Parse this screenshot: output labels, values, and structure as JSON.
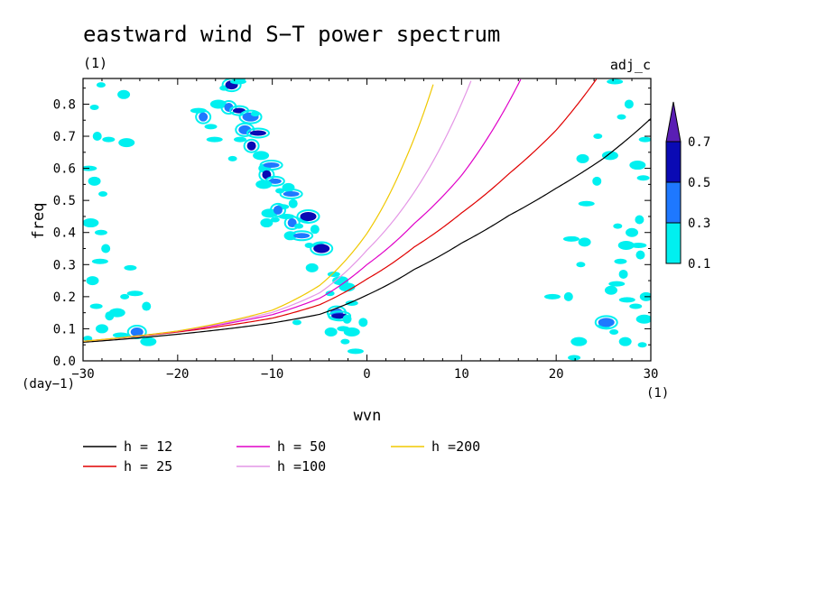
{
  "chart_data": {
    "type": "heatmap",
    "title": "eastward wind S−T power spectrum",
    "subtitle": "(1)",
    "annotation_right": "adj_c",
    "xlabel": "wvn",
    "ylabel": "freq",
    "x_unit": "(1)",
    "y_unit": "(day−1)",
    "xlim": [
      -30,
      30
    ],
    "ylim": [
      0,
      0.88
    ],
    "x_ticks": [
      -30,
      -20,
      -10,
      0,
      10,
      20,
      30
    ],
    "x_tick_labels": [
      "−30",
      "−20",
      "−10",
      "0",
      "10",
      "20",
      "30"
    ],
    "y_ticks": [
      0,
      0.1,
      0.2,
      0.3,
      0.4,
      0.5,
      0.6,
      0.7,
      0.8
    ],
    "y_tick_labels": [
      "0.0",
      "0.1",
      "0.2",
      "0.3",
      "0.4",
      "0.5",
      "0.6",
      "0.7",
      "0.8"
    ],
    "colorbar": {
      "levels": [
        0.1,
        0.3,
        0.5,
        0.7
      ],
      "labels": [
        "0.1",
        "0.3",
        "0.5",
        "0.7"
      ],
      "colors": [
        "#00f0f0",
        "#1e78ff",
        "#0a0ab4",
        "#5a1eb4"
      ]
    },
    "contour_patches": [
      {
        "x": -29.5,
        "y": 0.07,
        "c": 0
      },
      {
        "x": -28,
        "y": 0.1,
        "c": 0
      },
      {
        "x": -26,
        "y": 0.08,
        "c": 0
      },
      {
        "x": -27.2,
        "y": 0.14,
        "c": 0
      },
      {
        "x": -28.6,
        "y": 0.17,
        "c": 0
      },
      {
        "x": -26.4,
        "y": 0.15,
        "c": 0
      },
      {
        "x": -25.6,
        "y": 0.2,
        "c": 0
      },
      {
        "x": -29,
        "y": 0.25,
        "c": 0
      },
      {
        "x": -28.2,
        "y": 0.31,
        "c": 0
      },
      {
        "x": -27.6,
        "y": 0.35,
        "c": 0
      },
      {
        "x": -28.1,
        "y": 0.4,
        "c": 0
      },
      {
        "x": -29.2,
        "y": 0.43,
        "c": 0
      },
      {
        "x": -27.9,
        "y": 0.52,
        "c": 0
      },
      {
        "x": -28.8,
        "y": 0.56,
        "c": 0
      },
      {
        "x": -29.4,
        "y": 0.6,
        "c": 0
      },
      {
        "x": -28.5,
        "y": 0.7,
        "c": 0
      },
      {
        "x": -27.3,
        "y": 0.69,
        "c": 0
      },
      {
        "x": -25.4,
        "y": 0.68,
        "c": 0
      },
      {
        "x": -28.8,
        "y": 0.79,
        "c": 0
      },
      {
        "x": -25.7,
        "y": 0.83,
        "c": 0
      },
      {
        "x": -24.5,
        "y": 0.21,
        "c": 0
      },
      {
        "x": -23.3,
        "y": 0.17,
        "c": 0
      },
      {
        "x": -25,
        "y": 0.29,
        "c": 0
      },
      {
        "x": -23.1,
        "y": 0.06,
        "c": 0
      },
      {
        "x": -28.1,
        "y": 0.86,
        "c": 0
      },
      {
        "x": -24.3,
        "y": 0.09,
        "c": 1
      },
      {
        "x": -17.8,
        "y": 0.78,
        "c": 0
      },
      {
        "x": -17.3,
        "y": 0.76,
        "c": 1
      },
      {
        "x": -16.5,
        "y": 0.73,
        "c": 0
      },
      {
        "x": -15.7,
        "y": 0.8,
        "c": 0
      },
      {
        "x": -15.1,
        "y": 0.85,
        "c": 0
      },
      {
        "x": -14.3,
        "y": 0.86,
        "c": 2
      },
      {
        "x": -13.6,
        "y": 0.87,
        "c": 0
      },
      {
        "x": -14.6,
        "y": 0.79,
        "c": 1
      },
      {
        "x": -13.5,
        "y": 0.78,
        "c": 2
      },
      {
        "x": -12.3,
        "y": 0.76,
        "c": 1
      },
      {
        "x": -11.8,
        "y": 0.77,
        "c": 0
      },
      {
        "x": -12.9,
        "y": 0.72,
        "c": 1
      },
      {
        "x": -11.5,
        "y": 0.71,
        "c": 2
      },
      {
        "x": -12.2,
        "y": 0.67,
        "c": 2
      },
      {
        "x": -13.4,
        "y": 0.69,
        "c": 0
      },
      {
        "x": -11.2,
        "y": 0.64,
        "c": 0
      },
      {
        "x": -14.2,
        "y": 0.63,
        "c": 0
      },
      {
        "x": -10.8,
        "y": 0.6,
        "c": 0
      },
      {
        "x": -10.1,
        "y": 0.61,
        "c": 1
      },
      {
        "x": -10.6,
        "y": 0.58,
        "c": 2
      },
      {
        "x": -9.7,
        "y": 0.56,
        "c": 1
      },
      {
        "x": -10.9,
        "y": 0.55,
        "c": 0
      },
      {
        "x": -9.2,
        "y": 0.53,
        "c": 0
      },
      {
        "x": -8.3,
        "y": 0.54,
        "c": 0
      },
      {
        "x": -8,
        "y": 0.52,
        "c": 1
      },
      {
        "x": -7.8,
        "y": 0.49,
        "c": 0
      },
      {
        "x": -8.9,
        "y": 0.48,
        "c": 0
      },
      {
        "x": -10.3,
        "y": 0.46,
        "c": 0
      },
      {
        "x": -9.7,
        "y": 0.44,
        "c": 0
      },
      {
        "x": -10.6,
        "y": 0.43,
        "c": 0
      },
      {
        "x": -8.5,
        "y": 0.45,
        "c": 0
      },
      {
        "x": -7.9,
        "y": 0.43,
        "c": 1
      },
      {
        "x": -6.7,
        "y": 0.44,
        "c": 0
      },
      {
        "x": -6.2,
        "y": 0.45,
        "c": 2
      },
      {
        "x": -7.2,
        "y": 0.42,
        "c": 0
      },
      {
        "x": -8.1,
        "y": 0.39,
        "c": 0
      },
      {
        "x": -6.9,
        "y": 0.39,
        "c": 1
      },
      {
        "x": -5.5,
        "y": 0.41,
        "c": 0
      },
      {
        "x": -5.1,
        "y": 0.36,
        "c": 0
      },
      {
        "x": -4.8,
        "y": 0.35,
        "c": 2
      },
      {
        "x": -6.1,
        "y": 0.36,
        "c": 0
      },
      {
        "x": -13.5,
        "y": 0.88,
        "c": 0
      },
      {
        "x": -16.1,
        "y": 0.69,
        "c": 0
      },
      {
        "x": -9.4,
        "y": 0.47,
        "c": 1
      },
      {
        "x": -3.5,
        "y": 0.27,
        "c": 0
      },
      {
        "x": -2.8,
        "y": 0.25,
        "c": 0
      },
      {
        "x": -3.9,
        "y": 0.21,
        "c": 0
      },
      {
        "x": -3.2,
        "y": 0.15,
        "c": 1
      },
      {
        "x": -2.9,
        "y": 0.14,
        "c": 2
      },
      {
        "x": -2.1,
        "y": 0.13,
        "c": 0
      },
      {
        "x": -2.5,
        "y": 0.1,
        "c": 0
      },
      {
        "x": -1.6,
        "y": 0.09,
        "c": 0
      },
      {
        "x": -2.3,
        "y": 0.06,
        "c": 0
      },
      {
        "x": -3.8,
        "y": 0.09,
        "c": 0
      },
      {
        "x": -1.2,
        "y": 0.03,
        "c": 0
      },
      {
        "x": -0.4,
        "y": 0.12,
        "c": 0
      },
      {
        "x": -1.6,
        "y": 0.18,
        "c": 0
      },
      {
        "x": -2.1,
        "y": 0.23,
        "c": 0
      },
      {
        "x": -7.4,
        "y": 0.12,
        "c": 0
      },
      {
        "x": -5.8,
        "y": 0.29,
        "c": 0
      },
      {
        "x": 19.6,
        "y": 0.2,
        "c": 0
      },
      {
        "x": 21.3,
        "y": 0.2,
        "c": 0
      },
      {
        "x": 21.9,
        "y": 0.01,
        "c": 0
      },
      {
        "x": 22.4,
        "y": 0.06,
        "c": 0
      },
      {
        "x": 22.6,
        "y": 0.3,
        "c": 0
      },
      {
        "x": 23,
        "y": 0.37,
        "c": 0
      },
      {
        "x": 23.2,
        "y": 0.49,
        "c": 0
      },
      {
        "x": 24.3,
        "y": 0.56,
        "c": 0
      },
      {
        "x": 25.1,
        "y": 0.11,
        "c": 0
      },
      {
        "x": 25.3,
        "y": 0.12,
        "c": 1
      },
      {
        "x": 26.1,
        "y": 0.09,
        "c": 0
      },
      {
        "x": 25.8,
        "y": 0.22,
        "c": 0
      },
      {
        "x": 26.4,
        "y": 0.24,
        "c": 0
      },
      {
        "x": 27.1,
        "y": 0.27,
        "c": 0
      },
      {
        "x": 26.8,
        "y": 0.31,
        "c": 0
      },
      {
        "x": 27.4,
        "y": 0.36,
        "c": 0
      },
      {
        "x": 26.5,
        "y": 0.42,
        "c": 0
      },
      {
        "x": 28,
        "y": 0.4,
        "c": 0
      },
      {
        "x": 28.7,
        "y": 0.36,
        "c": 0
      },
      {
        "x": 28.9,
        "y": 0.33,
        "c": 0
      },
      {
        "x": 28.4,
        "y": 0.17,
        "c": 0
      },
      {
        "x": 29.3,
        "y": 0.13,
        "c": 0
      },
      {
        "x": 29.1,
        "y": 0.05,
        "c": 0
      },
      {
        "x": 27.3,
        "y": 0.06,
        "c": 0
      },
      {
        "x": 27.5,
        "y": 0.19,
        "c": 0
      },
      {
        "x": 28.8,
        "y": 0.44,
        "c": 0
      },
      {
        "x": 29.2,
        "y": 0.57,
        "c": 0
      },
      {
        "x": 25.7,
        "y": 0.64,
        "c": 0
      },
      {
        "x": 24.4,
        "y": 0.7,
        "c": 0
      },
      {
        "x": 22.8,
        "y": 0.63,
        "c": 0
      },
      {
        "x": 26.2,
        "y": 0.87,
        "c": 0
      },
      {
        "x": 27.7,
        "y": 0.8,
        "c": 0
      },
      {
        "x": 29.4,
        "y": 0.69,
        "c": 0
      },
      {
        "x": 28.6,
        "y": 0.61,
        "c": 0
      },
      {
        "x": 26.9,
        "y": 0.76,
        "c": 0
      },
      {
        "x": 29.5,
        "y": 0.2,
        "c": 0
      },
      {
        "x": 21.6,
        "y": 0.38,
        "c": 0
      }
    ],
    "series": [
      {
        "name": "h = 12",
        "color": "#000000",
        "h": 12,
        "x": [
          -30,
          -20,
          -10,
          -5,
          0,
          5,
          10,
          15,
          20,
          25,
          30
        ],
        "y": [
          0.058,
          0.083,
          0.118,
          0.145,
          0.205,
          0.285,
          0.367,
          0.453,
          0.538,
          0.631,
          0.755
        ]
      },
      {
        "name": "h = 25",
        "color": "#e00000",
        "h": 25,
        "x": [
          -30,
          -20,
          -10,
          -5,
          0,
          5,
          10,
          15,
          20,
          24.3
        ],
        "y": [
          0.061,
          0.09,
          0.133,
          0.175,
          0.255,
          0.355,
          0.461,
          0.583,
          0.719,
          0.88
        ]
      },
      {
        "name": "h = 50",
        "color": "#e000c8",
        "h": 50,
        "x": [
          -30,
          -20,
          -10,
          -5,
          0,
          5,
          10,
          16.3
        ],
        "y": [
          0.061,
          0.092,
          0.144,
          0.195,
          0.3,
          0.428,
          0.578,
          0.88
        ]
      },
      {
        "name": "h =100",
        "color": "#e496e6",
        "h": 100,
        "x": [
          -30,
          -20,
          -10,
          -5,
          0,
          5,
          11.1
        ],
        "y": [
          0.061,
          0.093,
          0.151,
          0.212,
          0.345,
          0.526,
          0.88
        ]
      },
      {
        "name": "h =200",
        "color": "#f0c800",
        "h": 200,
        "x": [
          -30,
          -20,
          -10,
          -5,
          0,
          4,
          7.2
        ],
        "y": [
          0.061,
          0.093,
          0.158,
          0.235,
          0.397,
          0.623,
          0.88
        ]
      }
    ]
  }
}
